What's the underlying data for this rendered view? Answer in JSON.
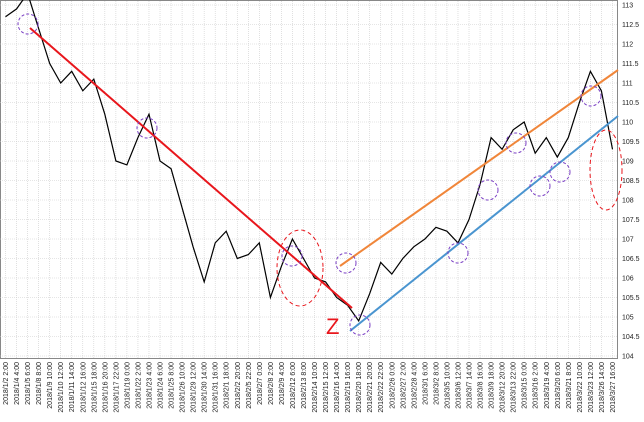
{
  "chart_data": {
    "type": "line",
    "color": "#000000",
    "annotation": "Z",
    "categories": [
      "2018/1/2 2:00",
      "2018/1/4 4:00",
      "2018/1/5 6:00",
      "2018/1/8 8:00",
      "2018/1/9 10:00",
      "2018/1/10 12:00",
      "2018/1/11 14:00",
      "2018/1/12 16:00",
      "2018/1/15 18:00",
      "2018/1/16 20:00",
      "2018/1/17 22:00",
      "2018/1/19 0:00",
      "2018/1/22 2:00",
      "2018/1/23 4:00",
      "2018/1/24 6:00",
      "2018/1/25 8:00",
      "2018/1/26 10:00",
      "2018/1/29 12:00",
      "2018/1/30 14:00",
      "2018/1/31 16:00",
      "2018/2/1 18:00",
      "2018/2/2 20:00",
      "2018/2/5 22:00",
      "2018/2/7 0:00",
      "2018/2/8 2:00",
      "2018/2/9 4:00",
      "2018/2/12 6:00",
      "2018/2/13 8:00",
      "2018/2/14 10:00",
      "2018/2/15 12:00",
      "2018/2/16 14:00",
      "2018/2/19 16:00",
      "2018/2/20 18:00",
      "2018/2/21 20:00",
      "2018/2/22 22:00",
      "2018/2/26 0:00",
      "2018/2/27 2:00",
      "2018/2/28 4:00",
      "2018/3/1 6:00",
      "2018/3/2 8:00",
      "2018/3/5 10:00",
      "2018/3/6 12:00",
      "2018/3/7 14:00",
      "2018/3/8 16:00",
      "2018/3/9 18:00",
      "2018/3/12 20:00",
      "2018/3/13 22:00",
      "2018/3/15 0:00",
      "2018/3/16 2:00",
      "2018/3/19 4:00",
      "2018/3/20 6:00",
      "2018/3/21 8:00",
      "2018/3/22 10:00",
      "2018/3/23 12:00",
      "2018/3/26 14:00",
      "2018/3/27 16:00"
    ],
    "values": [
      112.7,
      112.9,
      113.3,
      112.4,
      111.5,
      111.0,
      111.3,
      110.8,
      111.1,
      110.2,
      109.0,
      108.9,
      109.6,
      110.2,
      109.0,
      108.8,
      107.8,
      106.8,
      105.9,
      106.9,
      107.2,
      106.5,
      106.6,
      106.9,
      105.5,
      106.3,
      107.0,
      106.5,
      106.0,
      105.9,
      105.5,
      105.3,
      104.9,
      105.6,
      106.4,
      106.1,
      106.5,
      106.8,
      107.0,
      107.3,
      107.2,
      106.9,
      107.5,
      108.4,
      109.6,
      109.3,
      109.8,
      110.0,
      109.2,
      109.6,
      109.1,
      109.6,
      110.5,
      111.3,
      110.8,
      109.3
    ],
    "ylim": [
      104,
      113
    ],
    "yticks": [
      104,
      104.5,
      105,
      105.5,
      106,
      106.5,
      107,
      107.5,
      108,
      108.5,
      109,
      109.5,
      110,
      110.5,
      111,
      111.5,
      112,
      112.5,
      113
    ],
    "grid": true
  }
}
